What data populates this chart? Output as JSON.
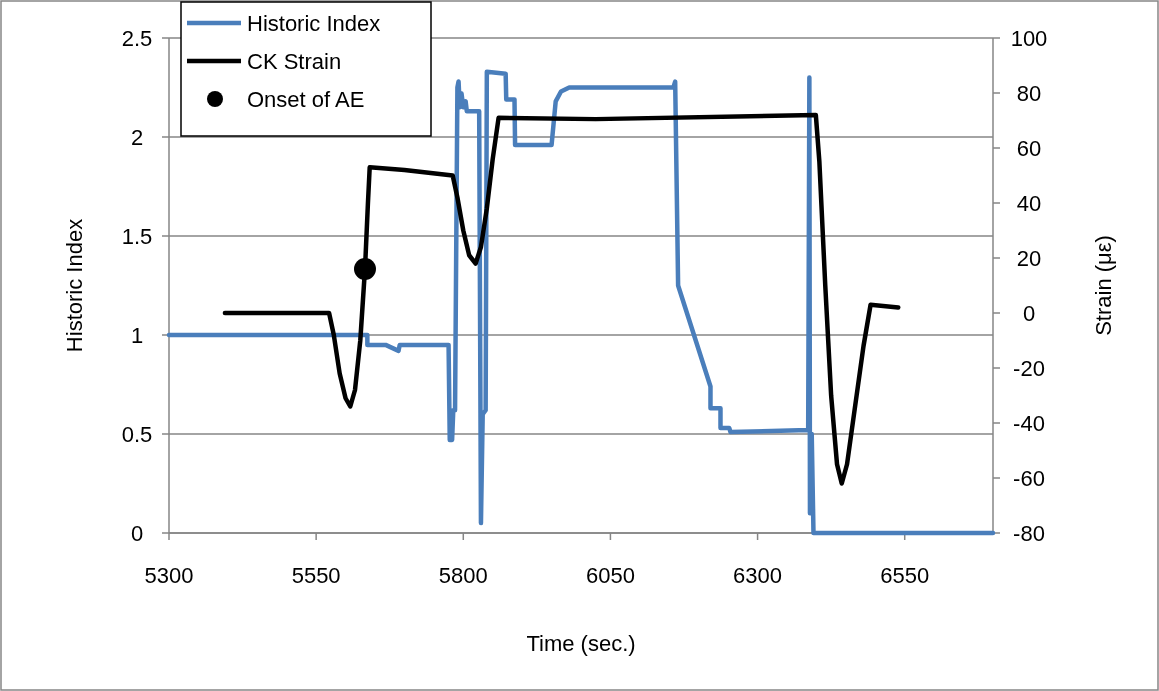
{
  "chart_data": {
    "type": "line",
    "xlabel": "Time (sec.)",
    "ylabel": "Historic Index",
    "y2label": "Strain (με)",
    "xlim": [
      5300,
      6700
    ],
    "xticks": [
      5300,
      5550,
      5800,
      6050,
      6300,
      6550
    ],
    "ylim": [
      0,
      2.5
    ],
    "yticks": [
      0,
      0.5,
      1,
      1.5,
      2,
      2.5
    ],
    "y2lim": [
      -80,
      100
    ],
    "y2ticks": [
      -80,
      -60,
      -40,
      -20,
      0,
      20,
      40,
      60,
      80,
      100
    ],
    "grid": "y",
    "legend": "top left",
    "series": [
      {
        "name": "Historic Index",
        "color": "#4a7ebb",
        "x": [
          5300,
          5637,
          5637,
          5668,
          5690,
          5692,
          5775,
          5777,
          5781,
          5783,
          5786,
          5790,
          5792,
          5794,
          5797,
          5800,
          5804,
          5806,
          5827,
          5830,
          5833,
          5838,
          5840,
          5872,
          5873,
          5887,
          5888,
          5950,
          5957,
          5966,
          5980,
          6157,
          6160,
          6165,
          6220,
          6220,
          6237,
          6237,
          6252,
          6254,
          6386,
          6388,
          6389,
          6392,
          6395,
          6700
        ],
        "values": [
          1,
          1,
          0.95,
          0.95,
          0.92,
          0.95,
          0.95,
          0.47,
          0.47,
          0.62,
          0.62,
          2.25,
          2.28,
          2.15,
          2.22,
          2.15,
          2.18,
          2.13,
          2.13,
          0.05,
          0.6,
          0.62,
          2.33,
          2.32,
          2.19,
          2.19,
          1.96,
          1.96,
          2.18,
          2.23,
          2.25,
          2.25,
          2.28,
          1.25,
          0.74,
          0.63,
          0.63,
          0.53,
          0.53,
          0.51,
          0.52,
          2.3,
          0.1,
          0.5,
          0,
          0
        ]
      },
      {
        "name": "CK Strain",
        "color": "#000000",
        "axis": "y2",
        "x": [
          5395,
          5572,
          5580,
          5590,
          5600,
          5608,
          5616,
          5625,
          5633,
          5638,
          5641,
          5700,
          5782,
          5790,
          5800,
          5810,
          5821,
          5830,
          5840,
          5850,
          5860,
          6025,
          6399,
          6405,
          6415,
          6425,
          6435,
          6443,
          6452,
          6465,
          6480,
          6492,
          6539
        ],
        "values": [
          0,
          0,
          -8,
          -22,
          -31,
          -34,
          -28,
          -10,
          16,
          40,
          53,
          52,
          50,
          42,
          30,
          21,
          18,
          24,
          38,
          56,
          71,
          70.5,
          72,
          55,
          10,
          -30,
          -55,
          -62,
          -55,
          -35,
          -12,
          3,
          2
        ]
      },
      {
        "name": "Onset of AE",
        "type": "scatter",
        "marker": "circle",
        "color": "#000000",
        "axis": "y2",
        "x": [
          5633
        ],
        "values": [
          16
        ]
      }
    ]
  }
}
